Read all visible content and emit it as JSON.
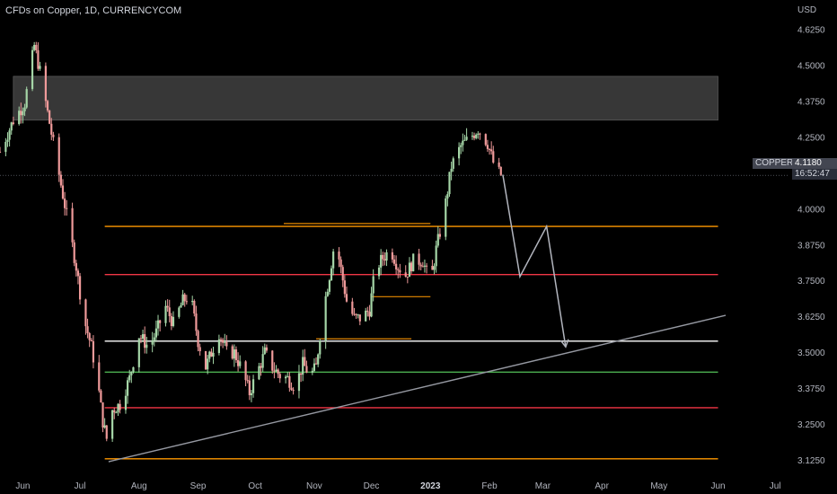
{
  "header": {
    "title": "CFDs on Copper, 1D, CURRENCYCOM",
    "currency": "USD"
  },
  "price_tag": {
    "symbol": "COPPER",
    "price": "4.1180",
    "countdown": "16:52:47"
  },
  "colors": {
    "background": "#000000",
    "up_candle": "#a5d6a7",
    "down_candle": "#ef9a9a",
    "zone": "#4a4a4a",
    "orange": "#ff9800",
    "red": "#f23645",
    "white": "#ffffff",
    "green": "#4caf50",
    "trend": "#9598a1",
    "projection": "#b2b5be"
  },
  "chart_data": {
    "type": "candlestick",
    "symbol": "COPPER",
    "interval": "1D",
    "y_axis": {
      "min": 3.07,
      "max": 4.66,
      "ticks": [
        "3.1250",
        "3.2500",
        "3.3750",
        "3.5000",
        "3.6250",
        "3.7500",
        "3.8750",
        "4.0000",
        "4.2500",
        "4.3750",
        "4.5000",
        "4.6250"
      ]
    },
    "x_axis": {
      "range": [
        "2022-05-20",
        "2023-07-08"
      ],
      "ticks": [
        {
          "label": "Jun",
          "date": "2022-06-01"
        },
        {
          "label": "Jul",
          "date": "2022-07-01"
        },
        {
          "label": "Aug",
          "date": "2022-08-01"
        },
        {
          "label": "Sep",
          "date": "2022-09-01"
        },
        {
          "label": "Oct",
          "date": "2022-10-01"
        },
        {
          "label": "Nov",
          "date": "2022-11-01"
        },
        {
          "label": "Dec",
          "date": "2022-12-01"
        },
        {
          "label": "2023",
          "date": "2023-01-01",
          "bold": true
        },
        {
          "label": "Feb",
          "date": "2023-02-01"
        },
        {
          "label": "Mar",
          "date": "2023-03-01"
        },
        {
          "label": "Apr",
          "date": "2023-04-01"
        },
        {
          "label": "May",
          "date": "2023-05-01"
        },
        {
          "label": "Jun",
          "date": "2023-06-01"
        },
        {
          "label": "Jul",
          "date": "2023-07-01"
        }
      ]
    },
    "price_path": [
      [
        "2022-05-20",
        4.2
      ],
      [
        "2022-05-27",
        4.31
      ],
      [
        "2022-06-02",
        4.37
      ],
      [
        "2022-06-07",
        4.57
      ],
      [
        "2022-06-10",
        4.48
      ],
      [
        "2022-06-15",
        4.3
      ],
      [
        "2022-06-20",
        4.12
      ],
      [
        "2022-06-24",
        3.98
      ],
      [
        "2022-06-29",
        3.8
      ],
      [
        "2022-07-03",
        3.62
      ],
      [
        "2022-07-07",
        3.52
      ],
      [
        "2022-07-10",
        3.41
      ],
      [
        "2022-07-13",
        3.26
      ],
      [
        "2022-07-15",
        3.2
      ],
      [
        "2022-07-18",
        3.3
      ],
      [
        "2022-07-22",
        3.32
      ],
      [
        "2022-07-27",
        3.41
      ],
      [
        "2022-08-01",
        3.56
      ],
      [
        "2022-08-06",
        3.52
      ],
      [
        "2022-08-10",
        3.57
      ],
      [
        "2022-08-15",
        3.66
      ],
      [
        "2022-08-19",
        3.6
      ],
      [
        "2022-08-24",
        3.68
      ],
      [
        "2022-08-28",
        3.7
      ],
      [
        "2022-09-01",
        3.54
      ],
      [
        "2022-09-05",
        3.45
      ],
      [
        "2022-09-08",
        3.5
      ],
      [
        "2022-09-12",
        3.57
      ],
      [
        "2022-09-16",
        3.5
      ],
      [
        "2022-09-20",
        3.5
      ],
      [
        "2022-09-24",
        3.44
      ],
      [
        "2022-09-28",
        3.36
      ],
      [
        "2022-10-02",
        3.43
      ],
      [
        "2022-10-06",
        3.5
      ],
      [
        "2022-10-10",
        3.45
      ],
      [
        "2022-10-14",
        3.42
      ],
      [
        "2022-10-18",
        3.41
      ],
      [
        "2022-10-22",
        3.38
      ],
      [
        "2022-10-26",
        3.46
      ],
      [
        "2022-10-30",
        3.42
      ],
      [
        "2022-11-02",
        3.45
      ],
      [
        "2022-11-05",
        3.62
      ],
      [
        "2022-11-09",
        3.77
      ],
      [
        "2022-11-12",
        3.9
      ],
      [
        "2022-11-15",
        3.79
      ],
      [
        "2022-11-18",
        3.68
      ],
      [
        "2022-11-22",
        3.62
      ],
      [
        "2022-11-26",
        3.62
      ],
      [
        "2022-11-30",
        3.65
      ],
      [
        "2022-12-03",
        3.79
      ],
      [
        "2022-12-07",
        3.83
      ],
      [
        "2022-12-11",
        3.86
      ],
      [
        "2022-12-15",
        3.8
      ],
      [
        "2022-12-19",
        3.77
      ],
      [
        "2022-12-23",
        3.82
      ],
      [
        "2022-12-28",
        3.82
      ],
      [
        "2023-01-01",
        3.74
      ],
      [
        "2023-01-04",
        3.86
      ],
      [
        "2023-01-08",
        3.98
      ],
      [
        "2023-01-12",
        4.15
      ],
      [
        "2023-01-17",
        4.22
      ],
      [
        "2023-01-22",
        4.25
      ],
      [
        "2023-01-26",
        4.28
      ],
      [
        "2023-01-31",
        4.23
      ],
      [
        "2023-02-04",
        4.14
      ],
      [
        "2023-02-07",
        4.12
      ]
    ],
    "resistance_zone": {
      "from": "2022-05-27",
      "to": "2023-06-01",
      "top": 4.463,
      "bottom": 4.31
    },
    "horizontal_levels": [
      {
        "price": 3.94,
        "from": "2022-07-14",
        "to": "2023-06-01",
        "color": "orange"
      },
      {
        "price": 3.772,
        "from": "2022-07-14",
        "to": "2023-06-01",
        "color": "red"
      },
      {
        "price": 3.54,
        "from": "2022-07-14",
        "to": "2023-06-01",
        "color": "white"
      },
      {
        "price": 3.432,
        "from": "2022-07-14",
        "to": "2023-06-01",
        "color": "green"
      },
      {
        "price": 3.308,
        "from": "2022-07-14",
        "to": "2023-06-01",
        "color": "red"
      },
      {
        "price": 3.13,
        "from": "2022-07-14",
        "to": "2023-06-01",
        "color": "orange"
      }
    ],
    "short_levels": [
      {
        "price": 3.95,
        "from": "2022-10-16",
        "to": "2023-01-01",
        "color": "orange"
      },
      {
        "price": 3.695,
        "from": "2022-12-01",
        "to": "2023-01-01",
        "color": "orange"
      },
      {
        "price": 3.548,
        "from": "2022-11-02",
        "to": "2022-12-22",
        "color": "orange"
      }
    ],
    "trendline": {
      "from": [
        "2022-07-16",
        3.12
      ],
      "to": [
        "2023-06-05",
        3.63
      ]
    },
    "projection_path": [
      [
        "2023-02-08",
        4.12
      ],
      [
        "2023-02-17",
        3.765
      ],
      [
        "2023-03-03",
        3.94
      ],
      [
        "2023-03-13",
        3.52
      ]
    ],
    "last_price": 4.118
  }
}
